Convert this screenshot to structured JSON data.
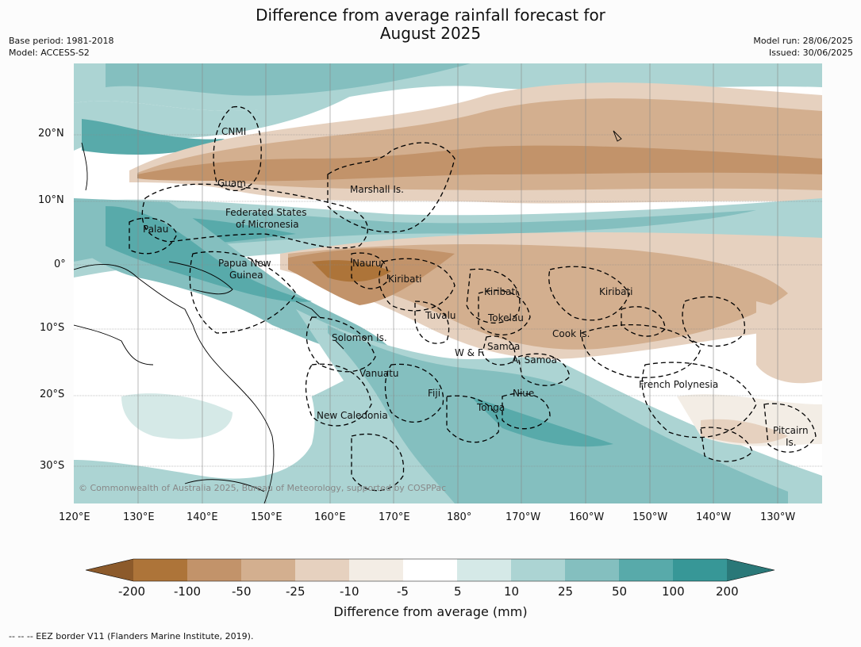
{
  "title_line1": "Difference from average rainfall forecast for",
  "title_line2": "August 2025",
  "base_period": "Base period: 1981-2018",
  "model": "Model: ACCESS-S2",
  "model_run": "Model run: 28/06/2025",
  "issued": "Issued: 30/06/2025",
  "copyright": "© Commonwealth of Australia 2025, Bureau of Meteorology, supported by COSPPac",
  "lon_labels": [
    "120°E",
    "130°E",
    "140°E",
    "150°E",
    "160°E",
    "170°E",
    "180°",
    "170°W",
    "160°W",
    "150°W",
    "140°W",
    "130°W"
  ],
  "lat_labels": [
    "20°N",
    "10°N",
    "0°",
    "10°S",
    "20°S",
    "30°S"
  ],
  "places": [
    {
      "id": "cnmi",
      "text": "CNMI"
    },
    {
      "id": "guam",
      "text": "Guam"
    },
    {
      "id": "marshall",
      "text": "Marshall Is."
    },
    {
      "id": "fsm1",
      "text": "Federated States"
    },
    {
      "id": "fsm2",
      "text": "of Micronesia"
    },
    {
      "id": "palau",
      "text": "Palau"
    },
    {
      "id": "png1",
      "text": "Papua New"
    },
    {
      "id": "png2",
      "text": "Guinea"
    },
    {
      "id": "nauru",
      "text": "Nauru"
    },
    {
      "id": "kiribati1",
      "text": "Kiribati"
    },
    {
      "id": "kiribati2",
      "text": "Kiribati"
    },
    {
      "id": "kiribati3",
      "text": "Kiribati"
    },
    {
      "id": "tuvalu",
      "text": "Tuvalu"
    },
    {
      "id": "tokelau",
      "text": "Tokelau"
    },
    {
      "id": "cook",
      "text": "Cook Is."
    },
    {
      "id": "solomon",
      "text": "Solomon Is."
    },
    {
      "id": "wf",
      "text": "W & F"
    },
    {
      "id": "samoa",
      "text": "Samoa"
    },
    {
      "id": "asamoa",
      "text": "A. Samoa"
    },
    {
      "id": "vanuatu",
      "text": "Vanuatu"
    },
    {
      "id": "fiji",
      "text": "Fiji"
    },
    {
      "id": "niue",
      "text": "Niue"
    },
    {
      "id": "tonga",
      "text": "Tonga"
    },
    {
      "id": "frpoly",
      "text": "French Polynesia"
    },
    {
      "id": "newcal",
      "text": "New Caledonia"
    },
    {
      "id": "pitcairn1",
      "text": "Pitcairn"
    },
    {
      "id": "pitcairn2",
      "text": "Is."
    }
  ],
  "colorbar": {
    "title": "Difference from average (mm)",
    "colors": [
      "#8c5a2b",
      "#ad7439",
      "#c2936a",
      "#d3af8f",
      "#e6d1bf",
      "#f3ede5",
      "#ffffff",
      "#d5e9e7",
      "#acd4d3",
      "#84bfbf",
      "#58aaaa",
      "#379797",
      "#2a7878"
    ],
    "ticks": [
      "-200",
      "-100",
      "-50",
      "-25",
      "-10",
      "-5",
      "5",
      "10",
      "25",
      "50",
      "100",
      "200"
    ]
  },
  "footer": "--  --  -- EEZ border V11 (Flanders Marine Institute, 2019)."
}
